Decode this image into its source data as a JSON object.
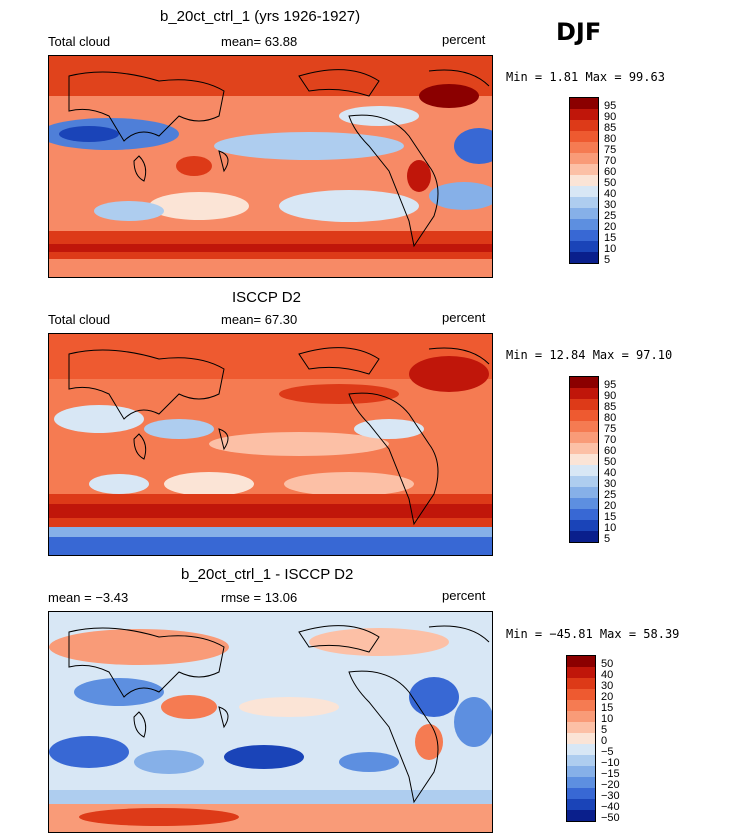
{
  "season": "DJF",
  "panels": [
    {
      "title": "b_20ct_ctrl_1 (yrs 1926-1927)",
      "left_label": "Total cloud",
      "center_label": "mean=  63.88",
      "right_label": "percent",
      "minmax": "Min =   1.81 Max =  99.63",
      "levels": [
        "95",
        "90",
        "85",
        "80",
        "75",
        "70",
        "60",
        "50",
        "40",
        "30",
        "25",
        "20",
        "15",
        "10",
        "5"
      ],
      "colors": [
        "#8b0000",
        "#c0160a",
        "#dd3a18",
        "#ee5a30",
        "#f57b52",
        "#f99b78",
        "#fcc0a6",
        "#fbe4d6",
        "#d8e7f5",
        "#aecdef",
        "#86b0e8",
        "#5d8fe0",
        "#3868d4",
        "#1a44b8",
        "#0a1f8c"
      ]
    },
    {
      "title": "ISCCP D2",
      "left_label": "Total cloud",
      "center_label": "mean=  67.30",
      "right_label": "percent",
      "minmax": "Min =  12.84 Max =  97.10",
      "levels": [
        "95",
        "90",
        "85",
        "80",
        "75",
        "70",
        "60",
        "50",
        "40",
        "30",
        "25",
        "20",
        "15",
        "10",
        "5"
      ],
      "colors": [
        "#8b0000",
        "#c0160a",
        "#dd3a18",
        "#ee5a30",
        "#f57b52",
        "#f99b78",
        "#fcc0a6",
        "#fbe4d6",
        "#d8e7f5",
        "#aecdef",
        "#86b0e8",
        "#5d8fe0",
        "#3868d4",
        "#1a44b8",
        "#0a1f8c"
      ]
    },
    {
      "title": "b_20ct_ctrl_1 - ISCCP D2",
      "left_label": "mean =  −3.43",
      "center_label": "rmse =  13.06",
      "right_label": "percent",
      "minmax": "Min = −45.81 Max =  58.39",
      "levels": [
        "50",
        "40",
        "30",
        "20",
        "15",
        "10",
        "5",
        "0",
        "−5",
        "−10",
        "−15",
        "−20",
        "−30",
        "−40",
        "−50"
      ],
      "colors": [
        "#8b0000",
        "#c0160a",
        "#dd3a18",
        "#ee5a30",
        "#f57b52",
        "#f99b78",
        "#fcc0a6",
        "#fbe4d6",
        "#d8e7f5",
        "#aecdef",
        "#86b0e8",
        "#5d8fe0",
        "#3868d4",
        "#1a44b8",
        "#0a1f8c"
      ]
    }
  ]
}
